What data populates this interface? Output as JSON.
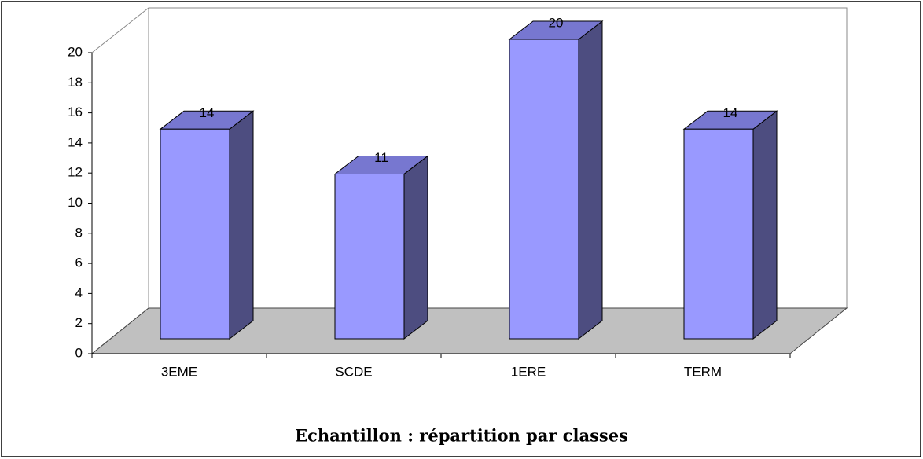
{
  "chart_data": {
    "type": "bar3d",
    "title": "Echantillon : répartition par classes",
    "categories": [
      "3EME",
      "SCDE",
      "1ERE",
      "TERM"
    ],
    "values": [
      14,
      11,
      20,
      14
    ],
    "color": "#9999ff",
    "ylim": [
      0,
      20
    ],
    "yticks": [
      0,
      2,
      4,
      6,
      8,
      10,
      12,
      14,
      16,
      18,
      20
    ]
  }
}
